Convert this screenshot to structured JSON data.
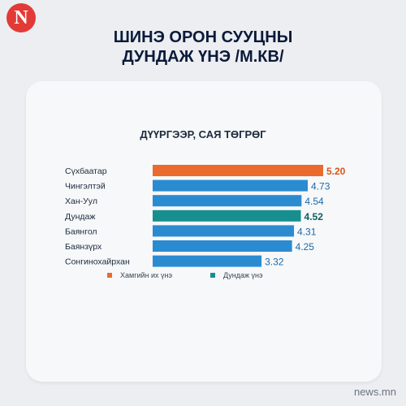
{
  "brand": {
    "logo_letter": "N",
    "site": "news.mn"
  },
  "headline": {
    "line1": "ШИНЭ ОРОН СУУЦНЫ",
    "line2": "ДУНДАЖ ҮНЭ /М.КВ/"
  },
  "colors": {
    "max": "#ea6a2e",
    "avg": "#178f8f",
    "default": "#2b8bd1",
    "logo": "#e23a36"
  },
  "chart_data": {
    "type": "bar",
    "orientation": "horizontal",
    "title": "ДҮҮРГЭЭР, САЯ ТӨГРӨГ",
    "categories": [
      "Сүхбаатар",
      "Чингэлтэй",
      "Хан-Уул",
      "Дундаж",
      "Баянгол",
      "Баянзүрх",
      "Сонгинохайрхан"
    ],
    "values": [
      5.2,
      4.73,
      4.54,
      4.52,
      4.31,
      4.25,
      3.32
    ],
    "value_labels": [
      "5.20",
      "4.73",
      "4.54",
      "4.52",
      "4.31",
      "4.25",
      "3.32"
    ],
    "highlight": [
      "max",
      "default",
      "default",
      "avg",
      "default",
      "default",
      "default"
    ],
    "legend": [
      {
        "key": "max",
        "label": "Хамгийн их үнэ"
      },
      {
        "key": "avg",
        "label": "Дундаж үнэ"
      }
    ],
    "legend_position": "bottom",
    "grid": false
  }
}
